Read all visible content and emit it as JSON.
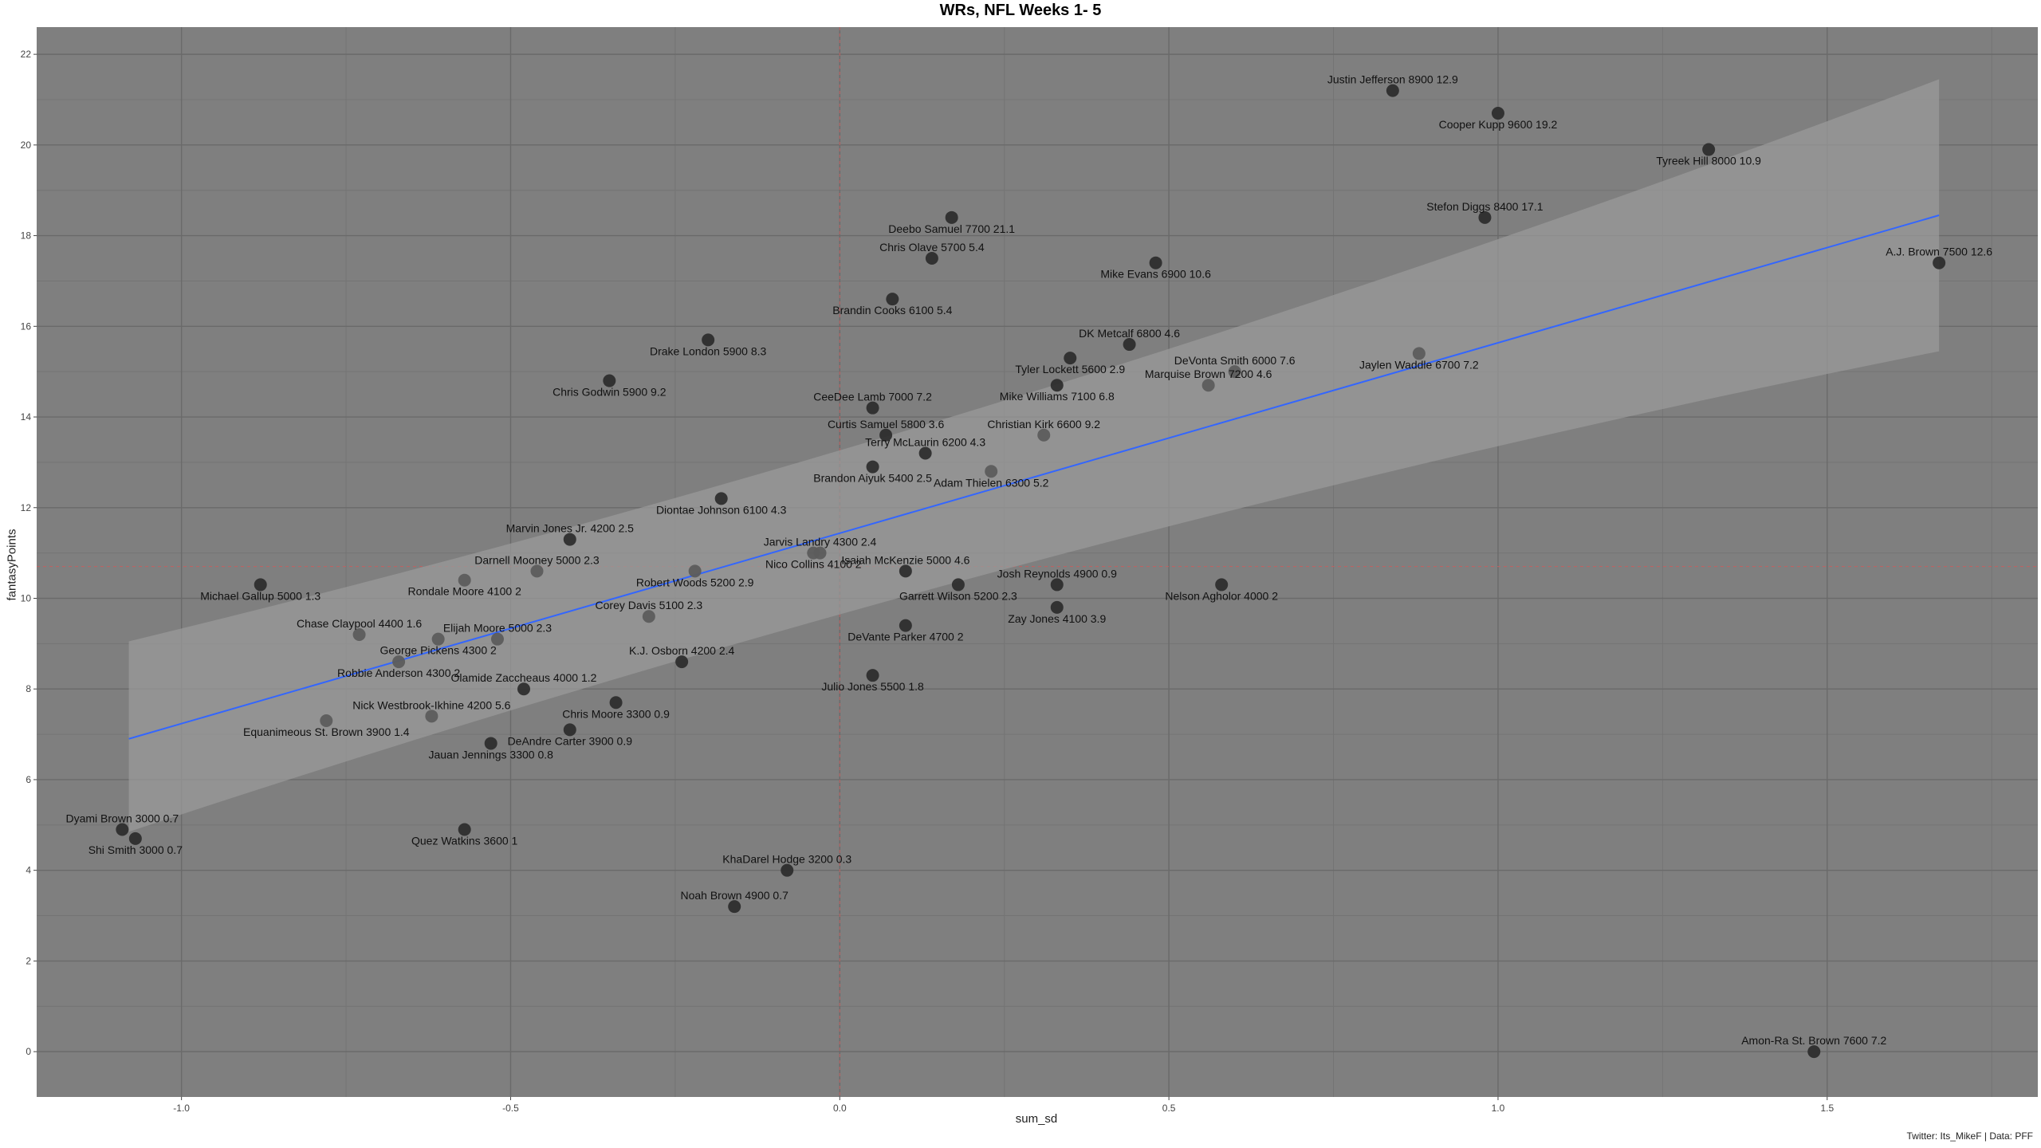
{
  "caption": "Twitter: Its_MikeF | Data: PFF",
  "colors": {
    "panel": "#7f7f7f",
    "grid_major": "#6a6a6a",
    "grid_minor": "#747474",
    "point": "#2e2e2e",
    "point_light": "#5c5c5c",
    "regression_line": "#3366ff",
    "ribbon": "#9a9a9a",
    "ref_line": "#c06060"
  },
  "chart_data": {
    "type": "scatter",
    "title": "WRs, NFL Weeks 1- 5",
    "xlabel": "sum_sd",
    "ylabel": "fantasyPoints",
    "xlim": [
      -1.22,
      1.82
    ],
    "ylim": [
      -1.0,
      22.6
    ],
    "xticks": [
      -1.0,
      -0.5,
      0.0,
      0.5,
      1.0,
      1.5
    ],
    "xtick_labels": [
      "-1.0",
      "-0.5",
      "0.0",
      "0.5",
      "1.0",
      "1.5"
    ],
    "yticks": [
      0,
      2,
      4,
      6,
      8,
      10,
      12,
      14,
      16,
      18,
      20,
      22
    ],
    "ytick_labels": [
      "0",
      "2",
      "4",
      "6",
      "8",
      "10",
      "12",
      "14",
      "16",
      "18",
      "20",
      "22"
    ],
    "grid": true,
    "reference_lines": {
      "x": 0.0,
      "y": 10.7
    },
    "regression": {
      "x_range": [
        -1.08,
        1.67
      ],
      "line": [
        [
          -1.08,
          6.9
        ],
        [
          1.67,
          18.45
        ]
      ],
      "band_upper": [
        [
          -1.08,
          9.05
        ],
        [
          1.67,
          21.45
        ]
      ],
      "band_lower": [
        [
          -1.08,
          4.85
        ],
        [
          1.67,
          15.45
        ]
      ]
    },
    "points": [
      {
        "label": "Justin Jefferson 8900 12.9",
        "x": 0.84,
        "y": 21.2,
        "above": true
      },
      {
        "label": "Cooper Kupp 9600 19.2",
        "x": 1.0,
        "y": 20.7,
        "above": false
      },
      {
        "label": "Tyreek Hill 8000 10.9",
        "x": 1.32,
        "y": 19.9,
        "above": false
      },
      {
        "label": "Stefon Diggs 8400 17.1",
        "x": 0.98,
        "y": 18.4,
        "above": true
      },
      {
        "label": "A.J. Brown 7500 12.6",
        "x": 1.67,
        "y": 17.4,
        "above": true
      },
      {
        "label": "Deebo Samuel 7700 21.1",
        "x": 0.17,
        "y": 18.4,
        "above": false
      },
      {
        "label": "Chris Olave 5700 5.4",
        "x": 0.14,
        "y": 17.5,
        "above": true
      },
      {
        "label": "Mike Evans 6900 10.6",
        "x": 0.48,
        "y": 17.4,
        "above": false
      },
      {
        "label": "Brandin Cooks 6100 5.4",
        "x": 0.08,
        "y": 16.6,
        "above": false
      },
      {
        "label": "DK Metcalf 6800 4.6",
        "x": 0.44,
        "y": 15.6,
        "above": true
      },
      {
        "label": "Drake London 5900 8.3",
        "x": -0.2,
        "y": 15.7,
        "above": false
      },
      {
        "label": "Tyler Lockett 5600 2.9",
        "x": 0.35,
        "y": 15.3,
        "above": false
      },
      {
        "label": "DeVonta Smith 6000 7.6",
        "x": 0.6,
        "y": 15.0,
        "above": true,
        "light": true
      },
      {
        "label": "Jaylen Waddle 6700 7.2",
        "x": 0.88,
        "y": 15.4,
        "above": false,
        "light": true
      },
      {
        "label": "Chris Godwin 5900 9.2",
        "x": -0.35,
        "y": 14.8,
        "above": false
      },
      {
        "label": "Marquise Brown 7200 4.6",
        "x": 0.56,
        "y": 14.7,
        "above": true,
        "light": true
      },
      {
        "label": "Mike Williams 7100 6.8",
        "x": 0.33,
        "y": 14.7,
        "above": false
      },
      {
        "label": "CeeDee Lamb 7000 7.2",
        "x": 0.05,
        "y": 14.2,
        "above": true
      },
      {
        "label": "Christian Kirk 6600 9.2",
        "x": 0.31,
        "y": 13.6,
        "above": true,
        "light": true
      },
      {
        "label": "Curtis Samuel 5800 3.6",
        "x": 0.07,
        "y": 13.6,
        "above": true
      },
      {
        "label": "Terry McLaurin 6200 4.3",
        "x": 0.13,
        "y": 13.2,
        "above": true
      },
      {
        "label": "Brandon Aiyuk 5400 2.5",
        "x": 0.05,
        "y": 12.9,
        "above": false
      },
      {
        "label": "Adam Thielen 6300 5.2",
        "x": 0.23,
        "y": 12.8,
        "above": false,
        "light": true
      },
      {
        "label": "Diontae Johnson 6100 4.3",
        "x": -0.18,
        "y": 12.2,
        "above": false
      },
      {
        "label": "Marvin Jones Jr. 4200 2.5",
        "x": -0.41,
        "y": 11.3,
        "above": true
      },
      {
        "label": "Jarvis Landry 4300 2.4",
        "x": -0.03,
        "y": 11.0,
        "above": true,
        "light": true
      },
      {
        "label": "Nico Collins 4100 2",
        "x": -0.04,
        "y": 11.0,
        "above": false,
        "light": true
      },
      {
        "label": "Darnell Mooney 5000 2.3",
        "x": -0.46,
        "y": 10.6,
        "above": true,
        "light": true
      },
      {
        "label": "Isaiah McKenzie 5000 4.6",
        "x": 0.1,
        "y": 10.6,
        "above": true
      },
      {
        "label": "Robert Woods 5200 2.9",
        "x": -0.22,
        "y": 10.6,
        "above": false,
        "light": true
      },
      {
        "label": "Rondale Moore 4100 2",
        "x": -0.57,
        "y": 10.4,
        "above": false,
        "light": true
      },
      {
        "label": "Josh Reynolds 4900 0.9",
        "x": 0.33,
        "y": 10.3,
        "above": true
      },
      {
        "label": "Garrett Wilson 5200 2.3",
        "x": 0.18,
        "y": 10.3,
        "above": false
      },
      {
        "label": "Nelson Agholor 4000 2",
        "x": 0.58,
        "y": 10.3,
        "above": false
      },
      {
        "label": "Michael Gallup 5000 1.3",
        "x": -0.88,
        "y": 10.3,
        "above": false
      },
      {
        "label": "Zay Jones 4100 3.9",
        "x": 0.33,
        "y": 9.8,
        "above": false
      },
      {
        "label": "Corey Davis 5100 2.3",
        "x": -0.29,
        "y": 9.6,
        "above": true,
        "light": true
      },
      {
        "label": "DeVante Parker 4700 2",
        "x": 0.1,
        "y": 9.4,
        "above": false
      },
      {
        "label": "Chase Claypool 4400 1.6",
        "x": -0.73,
        "y": 9.2,
        "above": true,
        "light": true
      },
      {
        "label": "Elijah Moore 5000 2.3",
        "x": -0.52,
        "y": 9.1,
        "above": true,
        "light": true
      },
      {
        "label": "George Pickens 4300 2",
        "x": -0.61,
        "y": 9.1,
        "above": false,
        "light": true
      },
      {
        "label": "K.J. Osborn 4200 2.4",
        "x": -0.24,
        "y": 8.6,
        "above": true
      },
      {
        "label": "Robbie Anderson 4300 2",
        "x": -0.67,
        "y": 8.6,
        "above": false,
        "light": true
      },
      {
        "label": "Julio Jones 5500 1.8",
        "x": 0.05,
        "y": 8.3,
        "above": false
      },
      {
        "label": "Olamide Zaccheaus 4000 1.2",
        "x": -0.48,
        "y": 8.0,
        "above": true
      },
      {
        "label": "Chris Moore 3300 0.9",
        "x": -0.34,
        "y": 7.7,
        "above": false
      },
      {
        "label": "Nick Westbrook-Ikhine 4200 5.6",
        "x": -0.62,
        "y": 7.4,
        "above": true,
        "light": true
      },
      {
        "label": "Equanimeous St. Brown 3900 1.4",
        "x": -0.78,
        "y": 7.3,
        "above": false,
        "light": true
      },
      {
        "label": "DeAndre Carter 3900 0.9",
        "x": -0.41,
        "y": 7.1,
        "above": false
      },
      {
        "label": "Jauan Jennings 3300 0.8",
        "x": -0.53,
        "y": 6.8,
        "above": false
      },
      {
        "label": "Dyami Brown 3000 0.7",
        "x": -1.09,
        "y": 4.9,
        "above": true
      },
      {
        "label": "Shi Smith 3000 0.7",
        "x": -1.07,
        "y": 4.7,
        "above": false
      },
      {
        "label": "Quez Watkins 3600 1",
        "x": -0.57,
        "y": 4.9,
        "above": false
      },
      {
        "label": "KhaDarel Hodge 3200 0.3",
        "x": -0.08,
        "y": 4.0,
        "above": true
      },
      {
        "label": "Noah Brown 4900 0.7",
        "x": -0.16,
        "y": 3.2,
        "above": true
      },
      {
        "label": "Amon-Ra St. Brown 7600 7.2",
        "x": 1.48,
        "y": 0.0,
        "above": true
      }
    ]
  }
}
